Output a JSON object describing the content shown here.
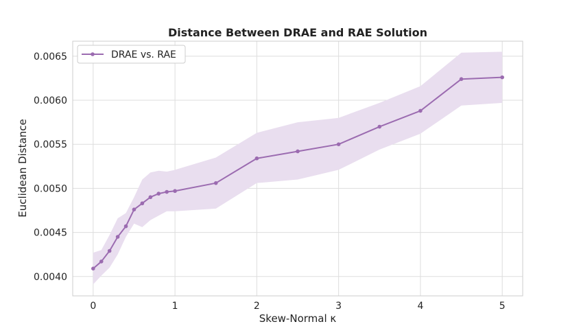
{
  "chart_data": {
    "type": "line",
    "title": "Distance Between DRAE and RAE Solution",
    "xlabel": "Skew-Normal κ",
    "ylabel": "Euclidean Distance",
    "xlim": [
      -0.25,
      5.25
    ],
    "ylim": [
      0.00378,
      0.00667
    ],
    "x_ticks": [
      0,
      1,
      2,
      3,
      4,
      5
    ],
    "x_tick_labels": [
      "0",
      "1",
      "2",
      "3",
      "4",
      "5"
    ],
    "y_ticks": [
      0.004,
      0.0045,
      0.005,
      0.0055,
      0.006,
      0.0065
    ],
    "y_tick_labels": [
      "0.0040",
      "0.0045",
      "0.0050",
      "0.0055",
      "0.0060",
      "0.0065"
    ],
    "grid": true,
    "legend_position": "top-left",
    "series": [
      {
        "name": "DRAE vs. RAE",
        "color": "#9b6bb0",
        "band_color": "#e9deef",
        "x": [
          0,
          0.1,
          0.2,
          0.3,
          0.4,
          0.5,
          0.6,
          0.7,
          0.8,
          0.9,
          1.0,
          1.5,
          2.0,
          2.5,
          3.0,
          3.5,
          4.0,
          4.5,
          5.0
        ],
        "values": [
          0.00409,
          0.00417,
          0.00429,
          0.00445,
          0.00457,
          0.00476,
          0.00483,
          0.0049,
          0.00494,
          0.00496,
          0.00497,
          0.00506,
          0.00534,
          0.00542,
          0.0055,
          0.0057,
          0.00588,
          0.00624,
          0.00626
        ],
        "upper": [
          0.00427,
          0.0043,
          0.00447,
          0.00466,
          0.00472,
          0.0049,
          0.0051,
          0.00518,
          0.0052,
          0.00519,
          0.00521,
          0.00535,
          0.00563,
          0.00575,
          0.0058,
          0.00597,
          0.00616,
          0.00654,
          0.00655
        ],
        "lower": [
          0.00391,
          0.00401,
          0.0041,
          0.00425,
          0.00445,
          0.0046,
          0.00456,
          0.00464,
          0.00469,
          0.00474,
          0.00474,
          0.00477,
          0.00506,
          0.0051,
          0.00521,
          0.00544,
          0.00562,
          0.00594,
          0.00597
        ]
      }
    ]
  }
}
